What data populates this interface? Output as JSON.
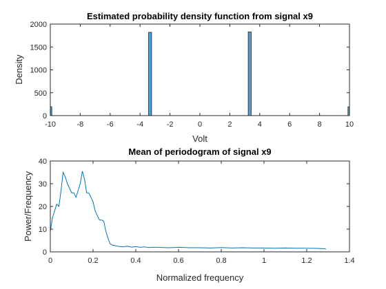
{
  "colors": {
    "hist_fill": "#4e9fd6",
    "hist_edge": "#1f1f1f",
    "line": "#0072bd",
    "axis": "#262626"
  },
  "chart_data": [
    {
      "type": "bar",
      "title": "Estimated probability density function from signal x9",
      "xlabel": "Volt",
      "ylabel": "Density",
      "xlim": [
        -10,
        10
      ],
      "ylim": [
        0,
        2000
      ],
      "xticks": [
        "-10",
        "-8",
        "-6",
        "-4",
        "-2",
        "0",
        "2",
        "4",
        "6",
        "8",
        "10"
      ],
      "yticks": [
        "0",
        "500",
        "1000",
        "1500",
        "2000"
      ],
      "bins": [
        {
          "x": -10,
          "value": 195
        },
        {
          "x": -3.33,
          "value": 1820
        },
        {
          "x": 3.33,
          "value": 1830
        },
        {
          "x": 10,
          "value": 190
        }
      ],
      "bin_width": 0.2,
      "grid": false
    },
    {
      "type": "line",
      "title": "Mean of periodogram of signal x9",
      "xlabel": "Normalized frequency",
      "ylabel": "Power/Frequency",
      "xlim": [
        0,
        1.4
      ],
      "ylim": [
        0,
        40
      ],
      "xticks": [
        "0",
        "0.2",
        "0.4",
        "0.6",
        "0.8",
        "1",
        "1.2",
        "1.4"
      ],
      "yticks": [
        "0",
        "10",
        "20",
        "30",
        "40"
      ],
      "grid": false,
      "x": [
        0,
        0.01,
        0.02,
        0.03,
        0.04,
        0.05,
        0.06,
        0.07,
        0.08,
        0.09,
        0.1,
        0.11,
        0.12,
        0.13,
        0.14,
        0.15,
        0.16,
        0.17,
        0.18,
        0.19,
        0.2,
        0.21,
        0.22,
        0.23,
        0.24,
        0.25,
        0.26,
        0.27,
        0.28,
        0.29,
        0.3,
        0.32,
        0.34,
        0.36,
        0.38,
        0.4,
        0.42,
        0.44,
        0.46,
        0.48,
        0.5,
        0.55,
        0.6,
        0.65,
        0.7,
        0.75,
        0.8,
        0.85,
        0.9,
        0.95,
        1.0,
        1.05,
        1.1,
        1.15,
        1.2,
        1.25,
        1.28,
        1.29
      ],
      "values": [
        9,
        15,
        18,
        21,
        20,
        27,
        35,
        33,
        30,
        28,
        26,
        26,
        24,
        27,
        30,
        35.5,
        32,
        26,
        26,
        24,
        22,
        18,
        16,
        14,
        14,
        13.5,
        9,
        6,
        3.5,
        3,
        2.8,
        2.4,
        2.2,
        2.5,
        2.1,
        2.3,
        2.0,
        2.2,
        1.9,
        2.0,
        2.0,
        1.8,
        2.0,
        1.8,
        1.8,
        1.7,
        1.9,
        1.7,
        1.8,
        1.7,
        1.7,
        1.6,
        1.7,
        1.6,
        1.6,
        1.5,
        1.4,
        1.2
      ]
    }
  ]
}
